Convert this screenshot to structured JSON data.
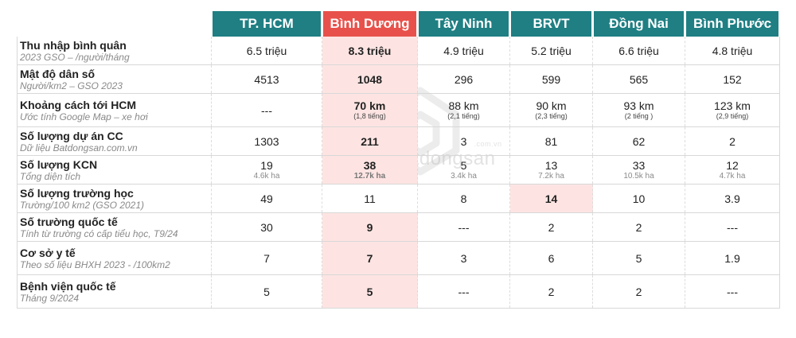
{
  "columns": [
    "TP. HCM",
    "Bình Dương",
    "Tây Ninh",
    "BRVT",
    "Đồng Nai",
    "Bình Phước"
  ],
  "rows": [
    {
      "title": "Thu nhập bình quân",
      "subtitle": "2023 GSO – /người/tháng",
      "cells": [
        {
          "v": "6.5 triệu"
        },
        {
          "v": "8.3 triệu"
        },
        {
          "v": "4.9 triệu"
        },
        {
          "v": "5.2 triệu"
        },
        {
          "v": "6.6 triệu"
        },
        {
          "v": "4.8 triệu"
        }
      ]
    },
    {
      "title": "Mật độ dân số",
      "subtitle": "Người/km2 – GSO 2023",
      "cells": [
        {
          "v": "4513"
        },
        {
          "v": "1048"
        },
        {
          "v": "296"
        },
        {
          "v": "599"
        },
        {
          "v": "565"
        },
        {
          "v": "152"
        }
      ]
    },
    {
      "title": "Khoảng cách tới HCM",
      "subtitle": "Ước tính Google Map – xe hơi",
      "cells": [
        {
          "v": "---"
        },
        {
          "v": "70 km",
          "s": "(1,8 tiếng)"
        },
        {
          "v": "88 km",
          "s": "(2,1 tiếng)"
        },
        {
          "v": "90 km",
          "s": "(2,3 tiếng)"
        },
        {
          "v": "93 km",
          "s": "(2 tiếng )"
        },
        {
          "v": "123 km",
          "s": "(2,9 tiếng)"
        }
      ]
    },
    {
      "title": "Số lượng dự án CC",
      "subtitle": "Dữ liệu Batdongsan.com.vn",
      "cells": [
        {
          "v": "1303"
        },
        {
          "v": "211"
        },
        {
          "v": "3"
        },
        {
          "v": "81"
        },
        {
          "v": "62"
        },
        {
          "v": "2"
        }
      ]
    },
    {
      "title": "Số lượng KCN",
      "subtitle": "Tổng diện tích",
      "cells": [
        {
          "v": "19",
          "s": "4.6k ha"
        },
        {
          "v": "38",
          "s": "12.7k ha"
        },
        {
          "v": "5",
          "s": "3.4k ha"
        },
        {
          "v": "13",
          "s": "7.2k ha"
        },
        {
          "v": "33",
          "s": "10.5k ha"
        },
        {
          "v": "12",
          "s": "4.7k ha"
        }
      ]
    },
    {
      "title": "Số lượng trường học",
      "subtitle": "Trường/100 km2 (GSO 2021)",
      "cells": [
        {
          "v": "49"
        },
        {
          "v": "11"
        },
        {
          "v": "8"
        },
        {
          "v": "14"
        },
        {
          "v": "10"
        },
        {
          "v": "3.9"
        }
      ]
    },
    {
      "title": "Số trường quốc tế",
      "subtitle": "Tính từ trường có cấp tiểu học, T9/24",
      "cells": [
        {
          "v": "30"
        },
        {
          "v": "9"
        },
        {
          "v": "---"
        },
        {
          "v": "2"
        },
        {
          "v": "2"
        },
        {
          "v": "---"
        }
      ]
    },
    {
      "title": "Cơ sở y tế",
      "subtitle": "Theo số liệu BHXH 2023 - /100km2",
      "cells": [
        {
          "v": "7"
        },
        {
          "v": "7"
        },
        {
          "v": "3"
        },
        {
          "v": "6"
        },
        {
          "v": "5"
        },
        {
          "v": "1.9"
        }
      ]
    },
    {
      "title": "Bệnh viện quốc tế",
      "subtitle": "Tháng 9/2024",
      "cells": [
        {
          "v": "5"
        },
        {
          "v": "5"
        },
        {
          "v": "---"
        },
        {
          "v": "2"
        },
        {
          "v": "2"
        },
        {
          "v": "---"
        }
      ]
    }
  ],
  "watermark": {
    "text": "batdongsan",
    "suffix": ".com.vn"
  },
  "colors": {
    "header": "#1f7f83",
    "highlight_header": "#e8514b",
    "highlight_cell": "#fde4e2"
  }
}
